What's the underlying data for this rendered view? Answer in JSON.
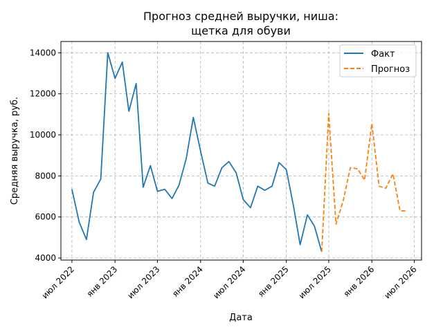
{
  "chart_data": {
    "type": "line",
    "title": [
      "Прогноз средней выручки, ниша:",
      "щетка для обуви"
    ],
    "xlabel": "Дата",
    "ylabel": "Средняя выручка, руб.",
    "x_ticks": [
      {
        "date": "2022-07-01",
        "label": "июл 2022"
      },
      {
        "date": "2023-01-01",
        "label": "янв 2023"
      },
      {
        "date": "2023-07-01",
        "label": "июл 2023"
      },
      {
        "date": "2024-01-01",
        "label": "янв 2024"
      },
      {
        "date": "2024-07-01",
        "label": "июл 2024"
      },
      {
        "date": "2025-01-01",
        "label": "янв 2025"
      },
      {
        "date": "2025-07-01",
        "label": "июл 2025"
      },
      {
        "date": "2026-01-01",
        "label": "янв 2026"
      },
      {
        "date": "2026-07-01",
        "label": "июл 2026"
      }
    ],
    "y_ticks": [
      4000,
      6000,
      8000,
      10000,
      12000,
      14000
    ],
    "xlim": [
      "2022-05-15",
      "2026-08-01"
    ],
    "ylim": [
      3900,
      14550
    ],
    "grid": true,
    "legend_position": "top-right",
    "series": [
      {
        "name": "Факт",
        "color": "#1f77b4",
        "style": "solid",
        "points": [
          [
            "2022-07-01",
            7350
          ],
          [
            "2022-08-01",
            5750
          ],
          [
            "2022-09-01",
            4900
          ],
          [
            "2022-10-01",
            7200
          ],
          [
            "2022-11-01",
            7850
          ],
          [
            "2022-12-01",
            14000
          ],
          [
            "2023-01-01",
            12750
          ],
          [
            "2023-02-01",
            13550
          ],
          [
            "2023-03-01",
            11150
          ],
          [
            "2023-04-01",
            12500
          ],
          [
            "2023-05-01",
            7450
          ],
          [
            "2023-06-01",
            8500
          ],
          [
            "2023-07-01",
            7250
          ],
          [
            "2023-08-01",
            7350
          ],
          [
            "2023-09-01",
            6900
          ],
          [
            "2023-10-01",
            7550
          ],
          [
            "2023-11-01",
            8850
          ],
          [
            "2023-12-01",
            10850
          ],
          [
            "2024-01-01",
            9200
          ],
          [
            "2024-02-01",
            7650
          ],
          [
            "2024-03-01",
            7500
          ],
          [
            "2024-04-01",
            8400
          ],
          [
            "2024-05-01",
            8700
          ],
          [
            "2024-06-01",
            8150
          ],
          [
            "2024-07-01",
            6850
          ],
          [
            "2024-08-01",
            6450
          ],
          [
            "2024-09-01",
            7500
          ],
          [
            "2024-10-01",
            7300
          ],
          [
            "2024-11-01",
            7500
          ],
          [
            "2024-12-01",
            8650
          ],
          [
            "2025-01-01",
            8300
          ],
          [
            "2025-02-01",
            6500
          ],
          [
            "2025-03-01",
            4650
          ],
          [
            "2025-04-01",
            6100
          ],
          [
            "2025-05-01",
            5550
          ],
          [
            "2025-06-01",
            4300
          ]
        ]
      },
      {
        "name": "Прогноз",
        "color": "#ff7f0e",
        "style": "dashed",
        "points": [
          [
            "2025-06-01",
            4300
          ],
          [
            "2025-07-01",
            11050
          ],
          [
            "2025-08-01",
            5650
          ],
          [
            "2025-09-01",
            6800
          ],
          [
            "2025-10-01",
            8400
          ],
          [
            "2025-11-01",
            8350
          ],
          [
            "2025-12-01",
            7800
          ],
          [
            "2026-01-01",
            10550
          ],
          [
            "2026-02-01",
            7500
          ],
          [
            "2026-03-01",
            7400
          ],
          [
            "2026-04-01",
            8100
          ],
          [
            "2026-05-01",
            6300
          ],
          [
            "2026-06-01",
            6300
          ]
        ]
      }
    ]
  }
}
